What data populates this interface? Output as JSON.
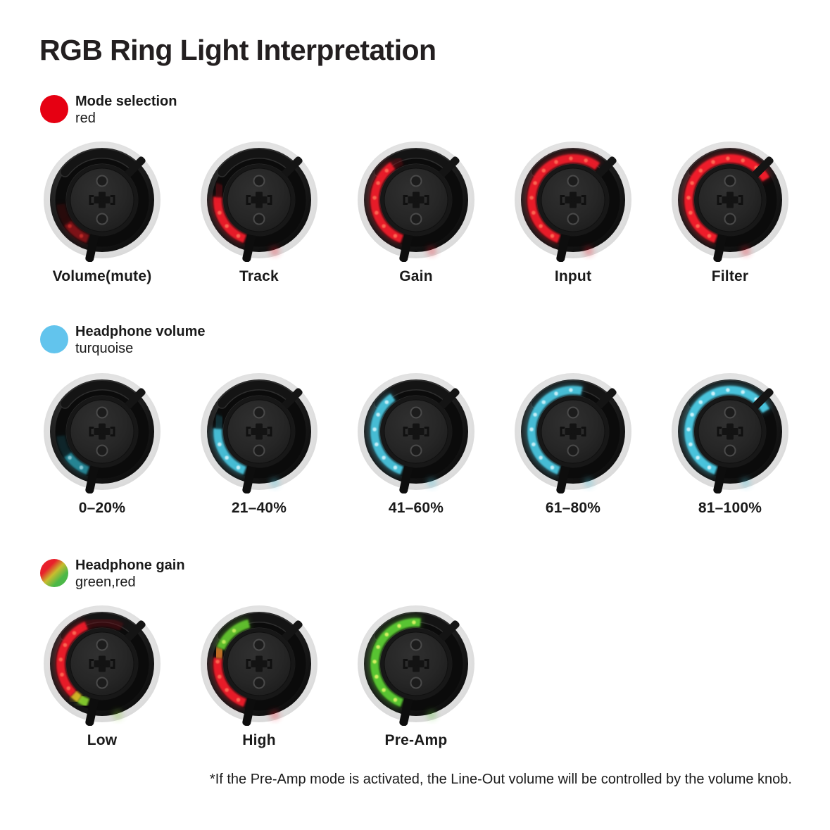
{
  "page": {
    "title": "RGB Ring Light Interpretation",
    "footnote": "*If the Pre-Amp mode is activated, the Line-Out volume will be controlled by the volume knob.",
    "background": "#ffffff",
    "text_color": "#1d1d1b"
  },
  "sections": [
    {
      "id": "mode-selection",
      "legend": {
        "title": "Mode selection",
        "subtitle": "red",
        "dot_colors": [
          "#e60012"
        ]
      },
      "knobs": [
        {
          "label": "Volume(mute)",
          "segments": [
            {
              "f": 250,
              "t": 214,
              "c": "#a8121e",
              "o": 0.65,
              "hot": "#e23b33"
            },
            {
              "f": 214,
              "t": 186,
              "c": "#5f0b10",
              "o": 0.28
            }
          ]
        },
        {
          "label": "Track",
          "segments": [
            {
              "f": 250,
              "t": 176,
              "c": "#ef1f2a",
              "o": 0.95,
              "hot": "#ff7258"
            },
            {
              "f": 176,
              "t": 158,
              "c": "#7a0d14",
              "o": 0.4
            }
          ]
        },
        {
          "label": "Gain",
          "segments": [
            {
              "f": 250,
              "t": 124,
              "c": "#ef1f2a",
              "o": 0.95,
              "hot": "#ff7258"
            },
            {
              "f": 124,
              "t": 110,
              "c": "#7a0d14",
              "o": 0.35
            }
          ]
        },
        {
          "label": "Input",
          "segments": [
            {
              "f": 250,
              "t": 54,
              "c": "#ef1f2a",
              "o": 0.95,
              "hot": "#ff7258"
            }
          ]
        },
        {
          "label": "Filter",
          "segments": [
            {
              "f": 250,
              "t": 30,
              "c": "#ef1f2a",
              "o": 1,
              "hot": "#ff7258"
            }
          ]
        }
      ]
    },
    {
      "id": "headphone-volume",
      "legend": {
        "title": "Headphone volume",
        "subtitle": "turquoise",
        "dot_colors": [
          "#62c4ed"
        ]
      },
      "knobs": [
        {
          "label": "0–20%",
          "segments": [
            {
              "f": 250,
              "t": 214,
              "c": "#2fa8bc",
              "o": 0.7,
              "hot": "#bff0fa"
            },
            {
              "f": 214,
              "t": 186,
              "c": "#16525e",
              "o": 0.3
            }
          ]
        },
        {
          "label": "21–40%",
          "segments": [
            {
              "f": 250,
              "t": 176,
              "c": "#48c3dc",
              "o": 0.95,
              "hot": "#d9f8ff"
            },
            {
              "f": 176,
              "t": 158,
              "c": "#1d6472",
              "o": 0.35
            }
          ]
        },
        {
          "label": "41–60%",
          "segments": [
            {
              "f": 250,
              "t": 124,
              "c": "#48c3dc",
              "o": 0.95,
              "hot": "#d9f8ff"
            }
          ]
        },
        {
          "label": "61–80%",
          "segments": [
            {
              "f": 250,
              "t": 78,
              "c": "#48c3dc",
              "o": 0.95,
              "hot": "#d9f8ff"
            }
          ]
        },
        {
          "label": "81–100%",
          "segments": [
            {
              "f": 250,
              "t": 30,
              "c": "#48c3dc",
              "o": 1,
              "hot": "#d9f8ff"
            }
          ]
        }
      ]
    },
    {
      "id": "headphone-gain",
      "legend": {
        "title": "Headphone gain",
        "subtitle": "green,red",
        "dot_colors": [
          "#e8202b",
          "#c8bd2e",
          "#4cb848"
        ]
      },
      "knobs": [
        {
          "label": "Low",
          "segments": [
            {
              "f": 250,
              "t": 237,
              "c": "#84cc2e",
              "o": 0.95,
              "hot": "#eef25e"
            },
            {
              "f": 237,
              "t": 226,
              "c": "#ddc62c",
              "o": 0.9
            },
            {
              "f": 226,
              "t": 112,
              "c": "#ef1f2a",
              "o": 0.95,
              "hot": "#ff7258"
            },
            {
              "f": 112,
              "t": 62,
              "c": "#6d0d14",
              "o": 0.35
            }
          ]
        },
        {
          "label": "High",
          "segments": [
            {
              "f": 250,
              "t": 172,
              "c": "#ef1f2a",
              "o": 0.95,
              "hot": "#ff7258"
            },
            {
              "f": 172,
              "t": 158,
              "c": "#d8782a",
              "o": 0.85
            },
            {
              "f": 158,
              "t": 104,
              "c": "#62c32f",
              "o": 0.95,
              "hot": "#cdf25e"
            }
          ]
        },
        {
          "label": "Pre-Amp",
          "segments": [
            {
              "f": 250,
              "t": 84,
              "c": "#58c433",
              "o": 1,
              "hot": "#e2f566"
            }
          ]
        }
      ]
    }
  ]
}
